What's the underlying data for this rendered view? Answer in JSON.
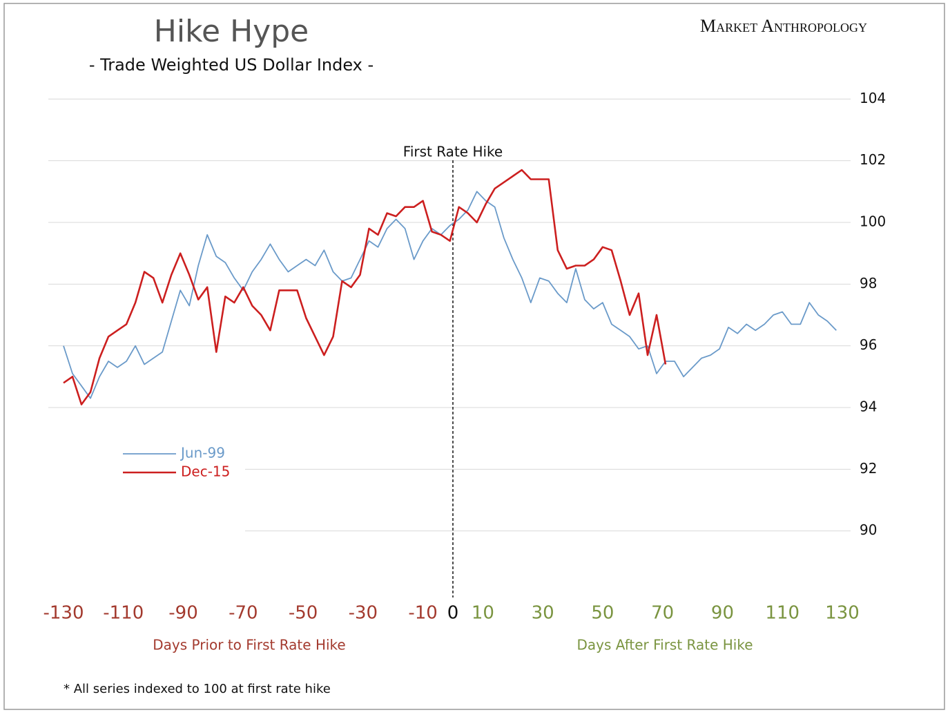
{
  "chart_data": {
    "type": "line",
    "title": "Hike Hype",
    "subtitle": "- Trade Weighted US Dollar Index -",
    "brand": "Market Anthropology",
    "x_label_left": "Days Prior to First Rate Hike",
    "x_label_right": "Days After First Rate Hike",
    "footnote": "* All series indexed to 100 at first rate hike",
    "annotations": [
      {
        "text": "First Rate Hike",
        "x": 0
      }
    ],
    "xlim": [
      -130,
      130
    ],
    "xticks": [
      -130,
      -110,
      -90,
      -70,
      -50,
      -30,
      -10,
      0,
      10,
      30,
      50,
      70,
      90,
      110,
      130
    ],
    "ylim": [
      88,
      106
    ],
    "yticks": [
      90,
      92,
      94,
      96,
      98,
      100,
      102,
      104
    ],
    "grid": true,
    "legend": "left",
    "x": [
      -130,
      -127,
      -124,
      -121,
      -118,
      -115,
      -112,
      -109,
      -106,
      -103,
      -100,
      -97,
      -94,
      -91,
      -88,
      -85,
      -82,
      -79,
      -76,
      -73,
      -70,
      -67,
      -64,
      -61,
      -58,
      -55,
      -52,
      -49,
      -46,
      -43,
      -40,
      -37,
      -34,
      -31,
      -28,
      -25,
      -22,
      -19,
      -16,
      -13,
      -10,
      -7,
      -4,
      -1,
      2,
      5,
      8,
      11,
      14,
      17,
      20,
      23,
      26,
      29,
      32,
      35,
      38,
      41,
      44,
      47,
      50,
      53,
      56,
      59,
      62,
      65,
      68,
      71,
      74,
      77,
      80,
      83,
      86,
      89,
      92,
      95,
      98,
      101,
      104,
      107,
      110,
      113,
      116,
      119,
      122,
      125,
      128
    ],
    "series": [
      {
        "name": "Jun-99",
        "color": "#6a9ac9",
        "values": [
          96.0,
          95.1,
          94.7,
          94.3,
          95.0,
          95.5,
          95.3,
          95.5,
          96.0,
          95.4,
          95.6,
          95.8,
          96.8,
          97.8,
          97.3,
          98.6,
          99.6,
          98.9,
          98.7,
          98.2,
          97.8,
          98.4,
          98.8,
          99.3,
          98.8,
          98.4,
          98.6,
          98.8,
          98.6,
          99.1,
          98.4,
          98.1,
          98.2,
          98.8,
          99.4,
          99.2,
          99.8,
          100.1,
          99.8,
          98.8,
          99.4,
          99.8,
          99.6,
          99.9,
          100.1,
          100.4,
          101.0,
          100.7,
          100.5,
          99.5,
          98.8,
          98.2,
          97.4,
          98.2,
          98.1,
          97.7,
          97.4,
          98.5,
          97.5,
          97.2,
          97.4,
          96.7,
          96.5,
          96.3,
          95.9,
          96.0,
          95.1,
          95.5,
          95.5,
          95.0,
          95.3,
          95.6,
          95.7,
          95.9,
          96.6,
          96.4,
          96.7,
          96.5,
          96.7,
          97.0,
          97.1,
          96.7,
          96.7,
          97.4,
          97.0,
          96.8,
          96.5
        ]
      },
      {
        "name": "Dec-15",
        "color": "#cc1f1f",
        "values": [
          94.8,
          95.0,
          94.1,
          94.5,
          95.6,
          96.3,
          96.5,
          96.7,
          97.4,
          98.4,
          98.2,
          97.4,
          98.3,
          99.0,
          98.3,
          97.5,
          97.9,
          95.8,
          97.6,
          97.4,
          97.9,
          97.3,
          97.0,
          96.5,
          97.8,
          97.8,
          97.8,
          96.9,
          96.3,
          95.7,
          96.3,
          98.1,
          97.9,
          98.3,
          99.8,
          99.6,
          100.3,
          100.2,
          100.5,
          100.5,
          100.7,
          99.7,
          99.6,
          99.4,
          100.5,
          100.3,
          100.0,
          100.6,
          101.1,
          101.3,
          101.5,
          101.7,
          101.4,
          101.4,
          101.4,
          99.1,
          98.5,
          98.6,
          98.6,
          98.8,
          99.2,
          99.1,
          98.1,
          97.0,
          97.7,
          95.7,
          97.0,
          95.4,
          null,
          null,
          null,
          null,
          null,
          null,
          null,
          null,
          null,
          null,
          null,
          null,
          null,
          null,
          null,
          null,
          null,
          null,
          null
        ]
      }
    ]
  }
}
